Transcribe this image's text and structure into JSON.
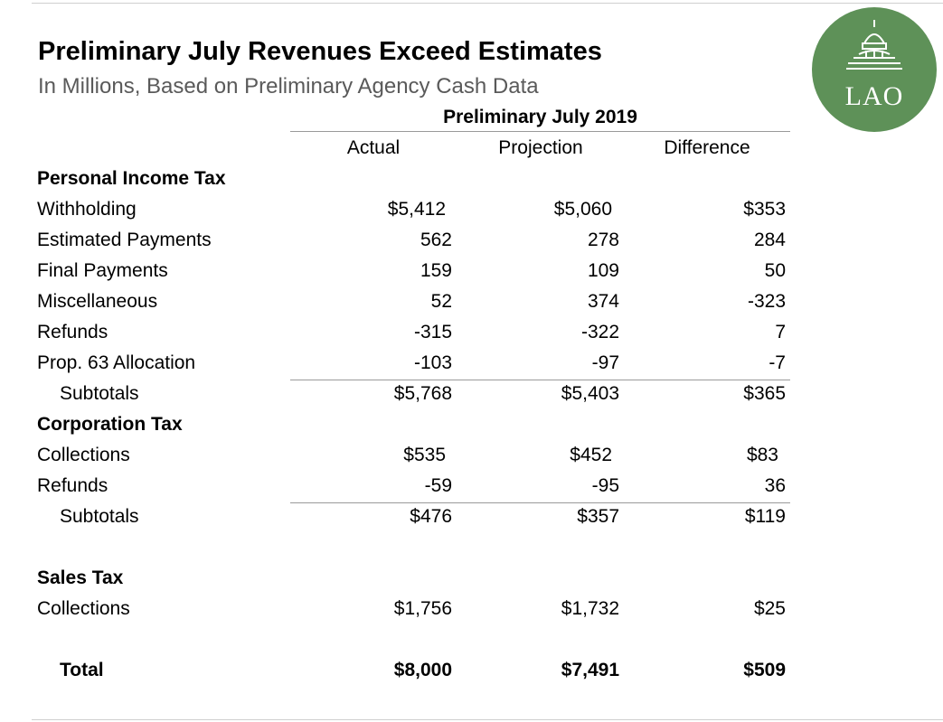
{
  "header": {
    "title": "Preliminary July Revenues Exceed Estimates",
    "subtitle": "In Millions, Based on Preliminary Agency Cash Data",
    "logo_text": "LAO"
  },
  "table": {
    "group_header": "Preliminary July 2019",
    "columns": [
      "Actual",
      "Projection",
      "Difference"
    ],
    "rows": [
      {
        "label": "Personal Income Tax",
        "kind": "section"
      },
      {
        "label": "Withholding",
        "values": [
          "$5,412",
          "$5,060",
          "$353"
        ],
        "kind": "dollar"
      },
      {
        "label": "Estimated Payments",
        "values": [
          "562",
          "278",
          "284"
        ]
      },
      {
        "label": "Final Payments",
        "values": [
          "159",
          "109",
          "50"
        ]
      },
      {
        "label": "Miscellaneous",
        "values": [
          "52",
          "374",
          "-323"
        ]
      },
      {
        "label": "Refunds",
        "values": [
          "-315",
          "-322",
          "7"
        ]
      },
      {
        "label": "Prop. 63 Allocation",
        "values": [
          "-103",
          "-97",
          "-7"
        ]
      },
      {
        "label": "Subtotals",
        "values": [
          "$5,768",
          "$5,403",
          "$365"
        ],
        "kind": "subtotal"
      },
      {
        "label": "Corporation Tax",
        "kind": "section"
      },
      {
        "label": "Collections",
        "values": [
          "$535",
          "$452",
          "$83"
        ],
        "kind": "dollar"
      },
      {
        "label": "Refunds",
        "values": [
          "-59",
          "-95",
          "36"
        ]
      },
      {
        "label": "Subtotals",
        "values": [
          "$476",
          "$357",
          "$119"
        ],
        "kind": "subtotal"
      },
      {
        "label": "Sales Tax",
        "kind": "section"
      },
      {
        "label": "Collections",
        "values": [
          "$1,756",
          "$1,732",
          "$25"
        ]
      },
      {
        "label": "Total",
        "values": [
          "$8,000",
          "$7,491",
          "$509"
        ],
        "kind": "total"
      }
    ]
  }
}
